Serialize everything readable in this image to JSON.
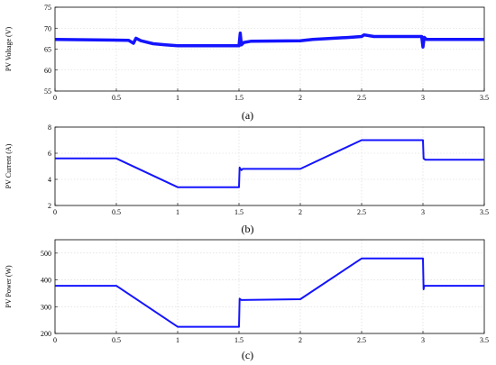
{
  "chart_data": [
    {
      "type": "line",
      "caption": "(a)",
      "ylabel": "PV Voltage (V)",
      "xlim": [
        0,
        3.5
      ],
      "ylim": [
        55,
        75
      ],
      "x_ticks": [
        "0",
        "0.5",
        "1",
        "1.5",
        "2",
        "2.5",
        "3",
        "3.5"
      ],
      "y_ticks": [
        "55",
        "60",
        "65",
        "70",
        "75"
      ],
      "grid": true,
      "color": "#1414ff",
      "series": [
        {
          "x": [
            0,
            0.6,
            0.64,
            0.66,
            0.7,
            0.8,
            0.9,
            1.0,
            1.2,
            1.4,
            1.5,
            1.51,
            1.52,
            1.54,
            1.6,
            2.0,
            2.1,
            2.4,
            2.5,
            2.52,
            2.6,
            2.99,
            3.0,
            3.01,
            3.03,
            3.1,
            3.5
          ],
          "y": [
            67.3,
            67.1,
            66.4,
            67.6,
            67.0,
            66.3,
            66.0,
            65.8,
            65.8,
            65.8,
            65.8,
            68.8,
            66.0,
            66.6,
            66.9,
            67.0,
            67.3,
            67.8,
            68.0,
            68.4,
            68.0,
            68.0,
            65.5,
            67.8,
            67.3,
            67.3,
            67.3
          ]
        }
      ]
    },
    {
      "type": "line",
      "caption": "(b)",
      "ylabel": "PV Current (A)",
      "xlim": [
        0,
        3.5
      ],
      "ylim": [
        2,
        8
      ],
      "x_ticks": [
        "0",
        "0.5",
        "1",
        "1.5",
        "2",
        "2.5",
        "3",
        "3.5"
      ],
      "y_ticks": [
        "2",
        "4",
        "6",
        "8"
      ],
      "grid": true,
      "color": "#1414ff",
      "series": [
        {
          "x": [
            0,
            0.5,
            1.0,
            1.5,
            1.505,
            1.52,
            1.53,
            2.0,
            2.5,
            3.0,
            3.005,
            3.02,
            3.5
          ],
          "y": [
            5.6,
            5.6,
            3.4,
            3.4,
            4.9,
            4.7,
            4.8,
            4.8,
            7.0,
            7.0,
            5.6,
            5.5,
            5.5
          ]
        }
      ]
    },
    {
      "type": "line",
      "caption": "(c)",
      "ylabel": "PV Power (W)",
      "xlim": [
        0,
        3.5
      ],
      "ylim": [
        200,
        550
      ],
      "x_ticks": [
        "0",
        "0.5",
        "1",
        "1.5",
        "2",
        "2.5",
        "3",
        "3.5"
      ],
      "y_ticks": [
        "200",
        "300",
        "400",
        "500"
      ],
      "grid": true,
      "color": "#1414ff",
      "series": [
        {
          "x": [
            0,
            0.5,
            1.0,
            1.5,
            1.505,
            1.52,
            2.0,
            2.5,
            3.0,
            3.005,
            3.01,
            3.02,
            3.5
          ],
          "y": [
            378,
            378,
            225,
            225,
            330,
            325,
            328,
            480,
            480,
            365,
            378,
            378,
            378
          ]
        }
      ]
    }
  ]
}
